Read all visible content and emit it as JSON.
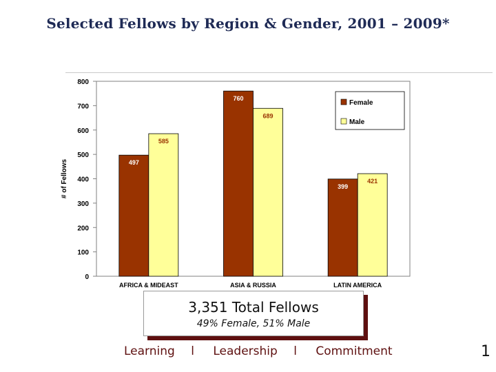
{
  "page": {
    "title": "Selected Fellows by Region & Gender, 2001 – 2009*",
    "summary_total": "3,351 Total Fellows",
    "summary_split": "49% Female, 51% Male",
    "footer": [
      "Learning",
      "l",
      "Leadership",
      "l",
      "Commitment"
    ],
    "page_number": "1"
  },
  "colors": {
    "female": "#993300",
    "male": "#ffff99",
    "title": "#1e2a55",
    "accent": "#5e1010"
  },
  "chart_data": {
    "type": "bar",
    "title": "",
    "xlabel": "",
    "ylabel": "# of Fellows",
    "ylim": [
      0,
      800
    ],
    "yticks": [
      0,
      100,
      200,
      300,
      400,
      500,
      600,
      700,
      800
    ],
    "categories": [
      "AFRICA & MIDEAST",
      "ASIA & RUSSIA",
      "LATIN AMERICA"
    ],
    "series": [
      {
        "name": "Female",
        "values": [
          497,
          760,
          399
        ]
      },
      {
        "name": "Male",
        "values": [
          585,
          689,
          421
        ]
      }
    ],
    "grid": false,
    "legend_position": "top-right"
  }
}
